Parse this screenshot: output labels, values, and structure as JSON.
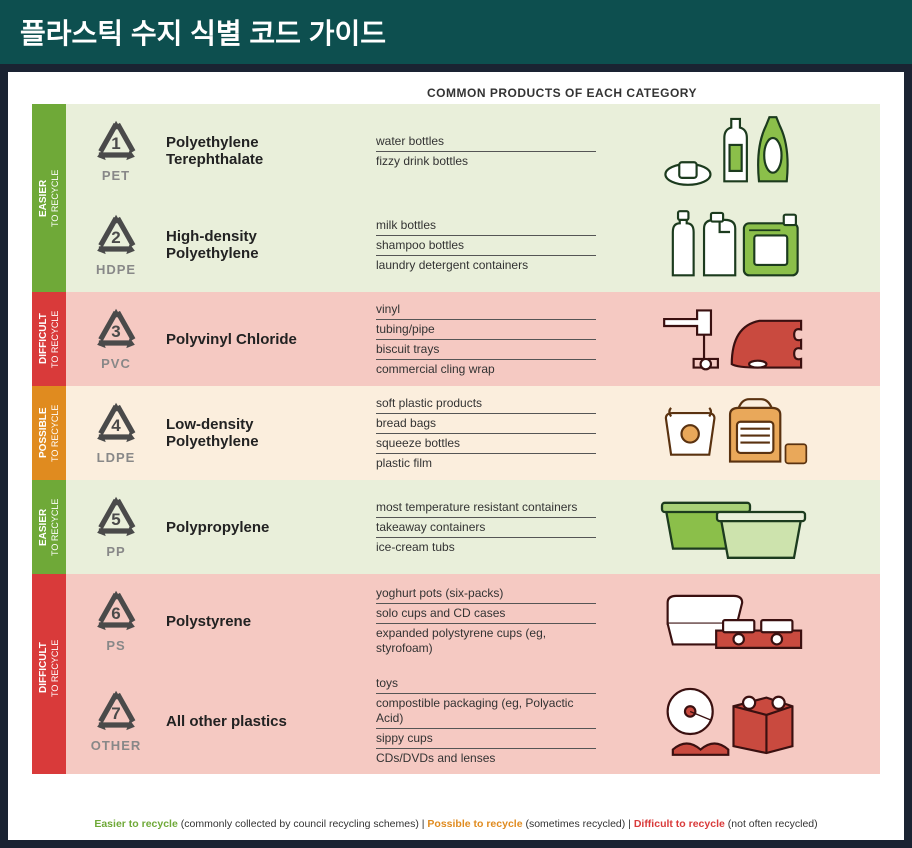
{
  "title": "플라스틱 수지 식별 코드 가이드",
  "column_header": "COMMON PRODUCTS OF EACH CATEGORY",
  "categories": {
    "easier": {
      "label": "EASIER",
      "sublabel": "TO RECYCLE",
      "color": "#6fa938",
      "bg": "#e9efda"
    },
    "possible": {
      "label": "POSSIBLE",
      "sublabel": "TO RECYCLE",
      "color": "#e08b1f",
      "bg": "#fbeedd"
    },
    "difficult": {
      "label": "DIFFICULT",
      "sublabel": "TO RECYCLE",
      "color": "#d93a3a",
      "bg": "#f5c9c2"
    }
  },
  "symbol_color": "#4a4a4a",
  "code_color": "#888888",
  "rows": [
    {
      "num": "1",
      "code": "PET",
      "name": "Polyethylene Terephthalate",
      "category": "easier",
      "products": [
        "water bottles",
        "fizzy drink bottles"
      ],
      "illus": "bottles-green"
    },
    {
      "num": "2",
      "code": "HDPE",
      "name": "High-density Polyethylene",
      "category": "easier",
      "products": [
        "milk bottles",
        "shampoo bottles",
        "laundry detergent containers"
      ],
      "illus": "jugs-green"
    },
    {
      "num": "3",
      "code": "PVC",
      "name": "Polyvinyl Chloride",
      "category": "difficult",
      "products": [
        "vinyl",
        "tubing/pipe",
        "biscuit trays",
        "commercial cling wrap"
      ],
      "illus": "pipe-wrap"
    },
    {
      "num": "4",
      "code": "LDPE",
      "name": "Low-density Polyethylene",
      "category": "possible",
      "products": [
        "soft plastic products",
        "bread bags",
        "squeeze bottles",
        "plastic film"
      ],
      "illus": "bags-orange"
    },
    {
      "num": "5",
      "code": "PP",
      "name": "Polypropylene",
      "category": "easier",
      "products": [
        "most temperature resistant containers",
        "takeaway containers",
        "ice-cream tubs"
      ],
      "illus": "tubs-green"
    },
    {
      "num": "6",
      "code": "PS",
      "name": "Polystyrene",
      "category": "difficult",
      "products": [
        "yoghurt pots (six-packs)",
        "solo cups and CD cases",
        "expanded polystyrene cups (eg, styrofoam)"
      ],
      "illus": "foam-red"
    },
    {
      "num": "7",
      "code": "OTHER",
      "name": "All other plastics",
      "category": "difficult",
      "products": [
        "toys",
        "compostible packaging (eg, Polyactic Acid)",
        "sippy cups",
        "CDs/DVDs and lenses"
      ],
      "illus": "misc-red"
    }
  ],
  "tab_groups": [
    {
      "category": "easier",
      "span": 2
    },
    {
      "category": "difficult",
      "span": 1
    },
    {
      "category": "possible",
      "span": 1
    },
    {
      "category": "easier",
      "span": 1
    },
    {
      "category": "difficult",
      "span": 2
    }
  ],
  "legend": {
    "easier": {
      "label": "Easier to recycle",
      "desc": "(commonly collected by council recycling schemes)"
    },
    "possible": {
      "label": "Possible to recycle",
      "desc": "(sometimes recycled)"
    },
    "difficult": {
      "label": "Difficult to recycle",
      "desc": "(not often recycled)"
    },
    "sep": "  |  "
  },
  "illustration_colors": {
    "green_fill": "#8bbf4a",
    "green_stroke": "#1c3b1e",
    "orange_fill": "#e9a85a",
    "orange_stroke": "#5a3210",
    "red_fill": "#c94a3f",
    "red_stroke": "#3a1010",
    "white_fill": "#ffffff"
  }
}
